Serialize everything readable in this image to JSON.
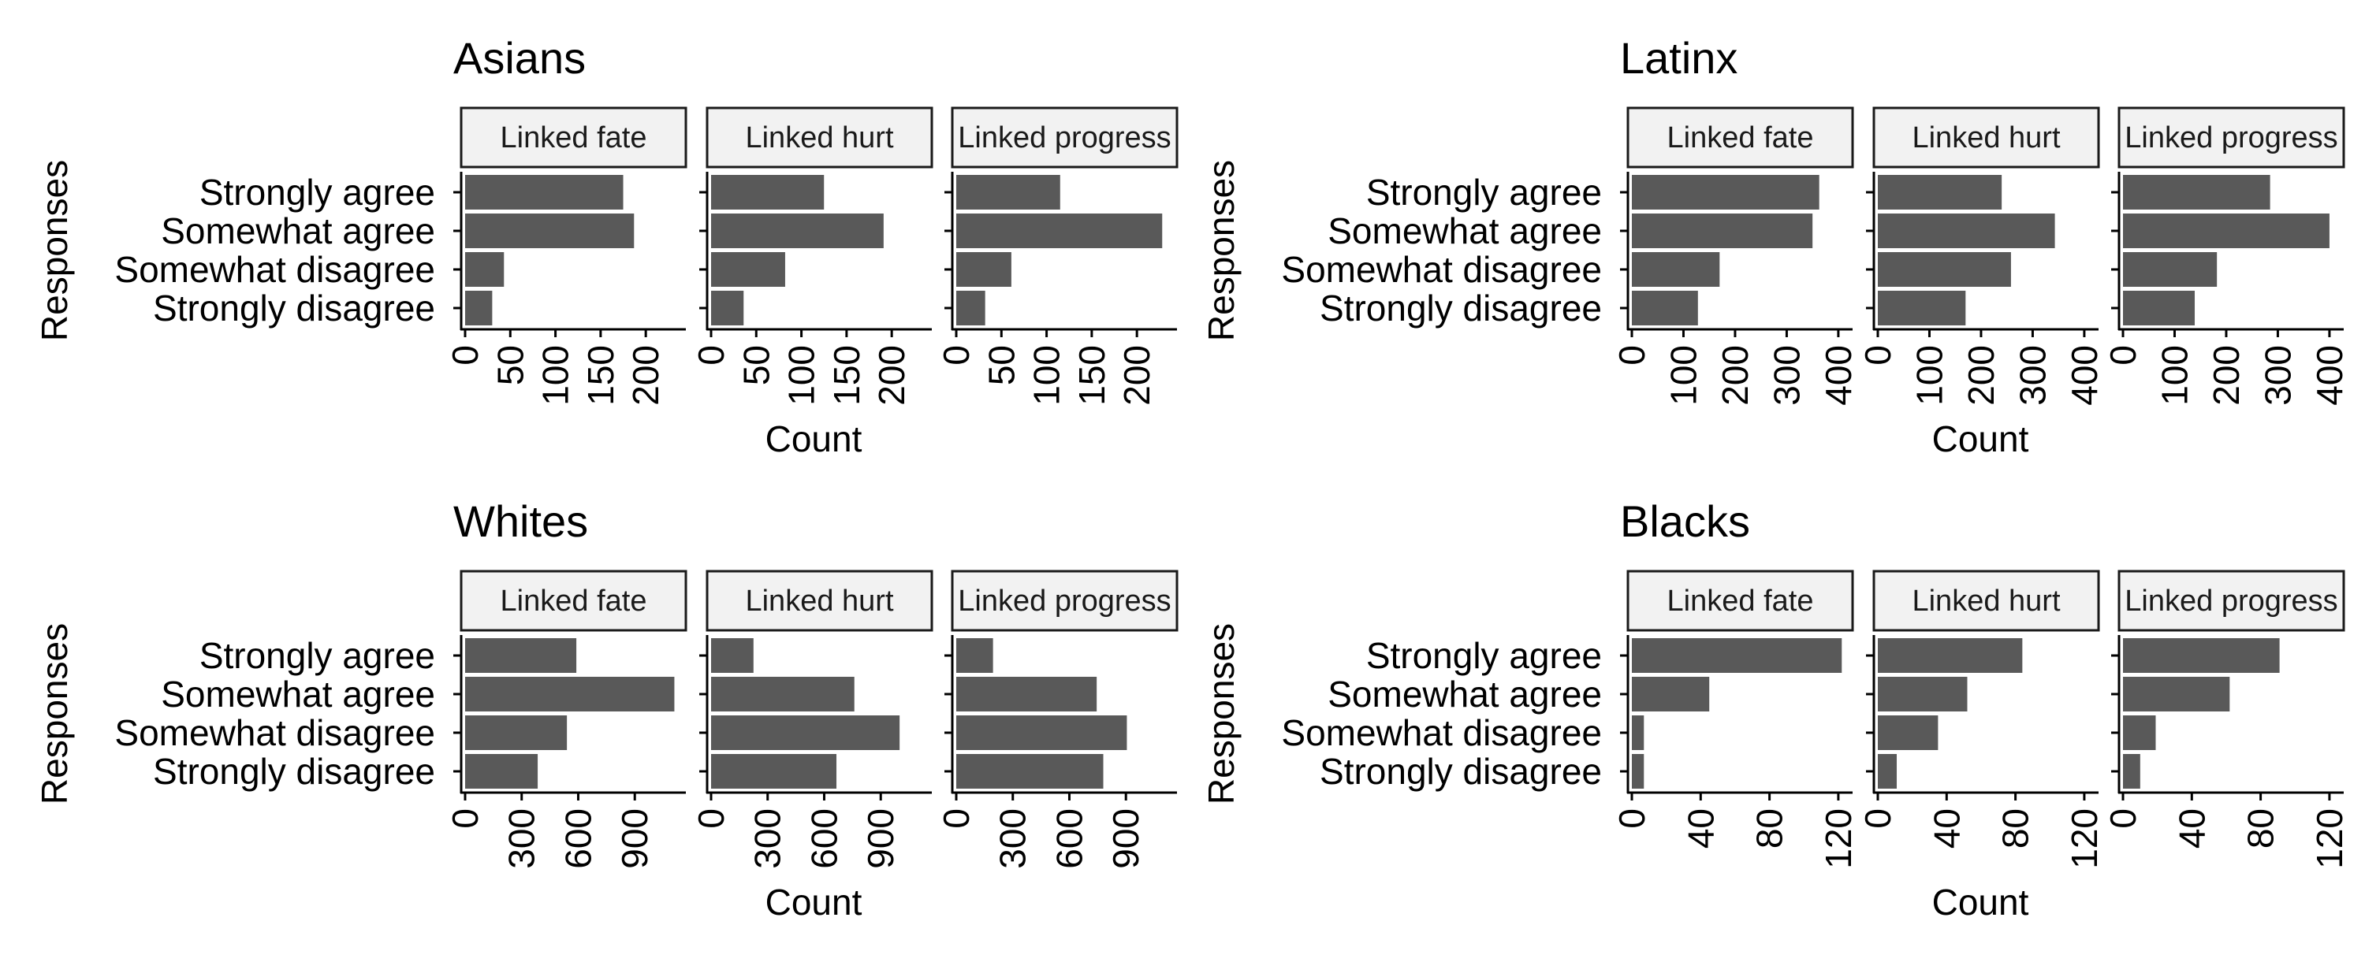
{
  "chart_data": [
    {
      "type": "bar",
      "title": "Asians",
      "ylabel": "Responses",
      "xlabel": "Count",
      "categories": [
        "Strongly agree",
        "Somewhat agree",
        "Somewhat disagree",
        "Strongly disagree"
      ],
      "xlim": [
        0,
        240
      ],
      "xticks": [
        0,
        50,
        100,
        150,
        200
      ],
      "facets": [
        {
          "name": "Linked fate",
          "values": [
            175,
            187,
            43,
            30
          ]
        },
        {
          "name": "Linked hurt",
          "values": [
            125,
            191,
            82,
            36
          ]
        },
        {
          "name": "Linked progress",
          "values": [
            115,
            228,
            61,
            32
          ]
        }
      ]
    },
    {
      "type": "bar",
      "title": "Latinx",
      "ylabel": "Responses",
      "xlabel": "Count",
      "categories": [
        "Strongly agree",
        "Somewhat agree",
        "Somewhat disagree",
        "Strongly disagree"
      ],
      "xlim": [
        0,
        420
      ],
      "xticks": [
        0,
        100,
        200,
        300,
        400
      ],
      "facets": [
        {
          "name": "Linked fate",
          "values": [
            363,
            350,
            170,
            128
          ]
        },
        {
          "name": "Linked hurt",
          "values": [
            240,
            343,
            258,
            170
          ]
        },
        {
          "name": "Linked progress",
          "values": [
            285,
            400,
            182,
            139
          ]
        }
      ]
    },
    {
      "type": "bar",
      "title": "Whites",
      "ylabel": "Responses",
      "xlabel": "Count",
      "categories": [
        "Strongly agree",
        "Somewhat agree",
        "Somewhat disagree",
        "Strongly disagree"
      ],
      "xlim": [
        0,
        1150
      ],
      "xticks": [
        0,
        300,
        600,
        900
      ],
      "facets": [
        {
          "name": "Linked fate",
          "values": [
            590,
            1110,
            540,
            385
          ]
        },
        {
          "name": "Linked hurt",
          "values": [
            225,
            760,
            1000,
            665
          ]
        },
        {
          "name": "Linked progress",
          "values": [
            195,
            745,
            905,
            780
          ]
        }
      ]
    },
    {
      "type": "bar",
      "title": "Blacks",
      "ylabel": "Responses",
      "xlabel": "Count",
      "categories": [
        "Strongly agree",
        "Somewhat agree",
        "Somewhat disagree",
        "Strongly disagree"
      ],
      "xlim": [
        0,
        126
      ],
      "xticks": [
        0,
        40,
        80,
        120
      ],
      "facets": [
        {
          "name": "Linked fate",
          "values": [
            122,
            45,
            7,
            7
          ]
        },
        {
          "name": "Linked hurt",
          "values": [
            84,
            52,
            35,
            11
          ]
        },
        {
          "name": "Linked progress",
          "values": [
            91,
            62,
            19,
            10
          ]
        }
      ]
    }
  ],
  "colors": {
    "bar": "#595959",
    "strip_fill": "#f2f2f2",
    "strip_border": "#1a1a1a"
  }
}
